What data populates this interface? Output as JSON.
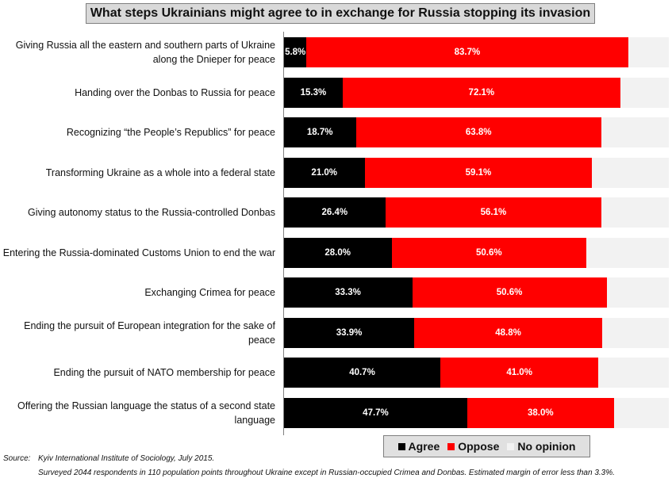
{
  "chart_data": {
    "type": "bar",
    "orientation": "horizontal",
    "stacked": true,
    "title": "What steps Ukrainians might agree to in exchange for Russia stopping its invasion",
    "categories": [
      "Giving Russia all the eastern and southern parts of Ukraine along the Dnieper for peace",
      "Handing over the Donbas to Russia for peace",
      "Recognizing “the People’s Republics” for peace",
      "Transforming Ukraine as a whole into a federal state",
      "Giving autonomy status to the Russia-controlled Donbas",
      "Entering the Russia-dominated Customs Union to end the war",
      "Exchanging Crimea for peace",
      "Ending the pursuit of European integration for the sake of peace",
      "Ending the pursuit of NATO membership for peace",
      "Offering the Russian language the status of a second state language"
    ],
    "series": [
      {
        "name": "Agree",
        "color": "#000000",
        "values": [
          5.8,
          15.3,
          18.7,
          21.0,
          26.4,
          28.0,
          33.3,
          33.9,
          40.7,
          47.7
        ],
        "labels": [
          "5.8%",
          "15.3%",
          "18.7%",
          "21.0%",
          "26.4%",
          "28.0%",
          "33.3%",
          "33.9%",
          "40.7%",
          "47.7%"
        ]
      },
      {
        "name": "Oppose",
        "color": "#ff0000",
        "values": [
          83.7,
          72.1,
          63.8,
          59.1,
          56.1,
          50.6,
          50.6,
          48.8,
          41.0,
          38.0
        ],
        "labels": [
          "83.7%",
          "72.1%",
          "63.8%",
          "59.1%",
          "56.1%",
          "50.6%",
          "50.6%",
          "48.8%",
          "41.0%",
          "38.0%"
        ]
      },
      {
        "name": "No opinion",
        "color": "#f2f2f2",
        "values": [
          10.5,
          12.6,
          17.5,
          19.9,
          17.5,
          21.4,
          16.1,
          17.3,
          18.3,
          14.3
        ]
      }
    ],
    "xlim": [
      0,
      100
    ],
    "legend_position": "bottom",
    "grid": false
  },
  "footer": {
    "source_label": "Source:",
    "source_text": "Kyiv International Institute of Sociology, July 2015.",
    "note": "Surveyed 2044 respondents in 110 population points throughout Ukraine except in Russian-occupied Crimea and Donbas. Estimated margin of error less than 3.3%."
  }
}
